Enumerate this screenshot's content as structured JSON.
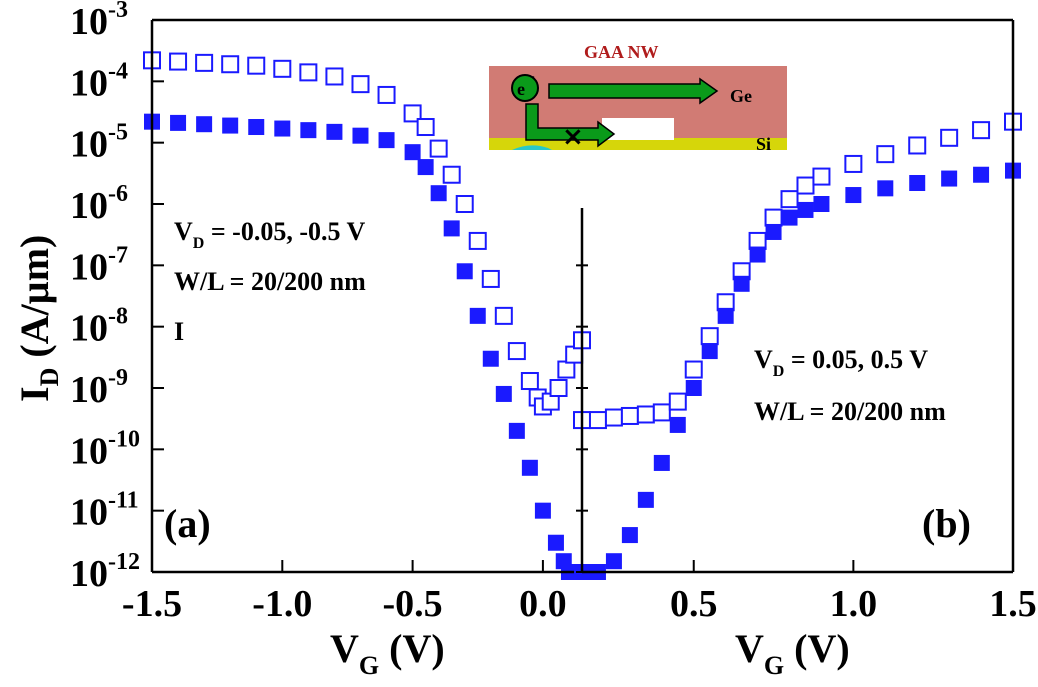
{
  "chart_data": [
    {
      "panel": "(a)",
      "type": "scatter",
      "xlim": [
        -1.5,
        0.15
      ],
      "ylim": [
        1e-12,
        0.001
      ],
      "yscale": "log",
      "x_ticks": [
        "-1.5",
        "-1.0",
        "-0.5",
        "0.0"
      ],
      "y_ticks": [
        {
          "base": "10",
          "exp": "-3",
          "value": 0.001
        },
        {
          "base": "10",
          "exp": "-4",
          "value": 0.0001
        },
        {
          "base": "10",
          "exp": "-5",
          "value": 1e-05
        },
        {
          "base": "10",
          "exp": "-6",
          "value": 1e-06
        },
        {
          "base": "10",
          "exp": "-7",
          "value": 1e-07
        },
        {
          "base": "10",
          "exp": "-8",
          "value": 1e-08
        },
        {
          "base": "10",
          "exp": "-9",
          "value": 1e-09
        },
        {
          "base": "10",
          "exp": "-10",
          "value": 1e-10
        },
        {
          "base": "10",
          "exp": "-11",
          "value": 1e-11
        },
        {
          "base": "10",
          "exp": "-12",
          "value": 1e-12
        }
      ],
      "xlabel": {
        "main": "V",
        "sub": "G",
        "rest": " (V)"
      },
      "ylabel": {
        "main": "I",
        "sub": "D",
        "rest": " (A/µm)"
      },
      "annotations": [
        {
          "main": "V",
          "sub": "D",
          "rest": " = -0.05, -0.5 V"
        },
        {
          "main": "W/L = 20/200 nm",
          "sub": "",
          "rest": ""
        },
        {
          "main": "I",
          "sub": "",
          "rest": ""
        }
      ],
      "series": [
        {
          "marker": "open-square",
          "x": [
            -1.5,
            -1.4,
            -1.3,
            -1.2,
            -1.1,
            -1.0,
            -0.9,
            -0.8,
            -0.7,
            -0.6,
            -0.5,
            -0.45,
            -0.4,
            -0.35,
            -0.3,
            -0.25,
            -0.2,
            -0.15,
            -0.1,
            -0.05,
            -0.02,
            0.0,
            0.03,
            0.06,
            0.09,
            0.12,
            0.15
          ],
          "y": [
            0.00022,
            0.00021,
            0.0002,
            0.00019,
            0.00018,
            0.00016,
            0.00014,
            0.00012,
            9e-05,
            6e-05,
            3e-05,
            1.8e-05,
            8e-06,
            3e-06,
            1e-06,
            2.5e-07,
            6e-08,
            1.5e-08,
            4e-09,
            1.3e-09,
            7e-10,
            5e-10,
            6e-10,
            1e-09,
            2e-09,
            3.5e-09,
            6e-09
          ]
        },
        {
          "marker": "filled-square",
          "x": [
            -1.5,
            -1.4,
            -1.3,
            -1.2,
            -1.1,
            -1.0,
            -0.9,
            -0.8,
            -0.7,
            -0.6,
            -0.5,
            -0.45,
            -0.4,
            -0.35,
            -0.3,
            -0.25,
            -0.2,
            -0.15,
            -0.1,
            -0.05,
            0.0,
            0.05,
            0.08,
            0.1,
            0.12,
            0.14
          ],
          "y": [
            2.2e-05,
            2.1e-05,
            2e-05,
            1.9e-05,
            1.8e-05,
            1.7e-05,
            1.6e-05,
            1.5e-05,
            1.3e-05,
            1.1e-05,
            7e-06,
            4e-06,
            1.5e-06,
            4e-07,
            8e-08,
            1.5e-08,
            3e-09,
            8e-10,
            2e-10,
            5e-11,
            1e-11,
            3e-12,
            1.5e-12,
            1e-12,
            1e-12,
            1e-12
          ]
        }
      ]
    },
    {
      "panel": "(b)",
      "type": "scatter",
      "xlim": [
        0.15,
        1.5
      ],
      "ylim": [
        1e-12,
        0.001
      ],
      "yscale": "log",
      "x_ticks": [
        "0.5",
        "1.0",
        "1.5"
      ],
      "xlabel": {
        "main": "V",
        "sub": "G",
        "rest": " (V)"
      },
      "annotations": [
        {
          "main": "V",
          "sub": "D",
          "rest": " = 0.05, 0.5 V"
        },
        {
          "main": "W/L = 20/200 nm",
          "sub": "",
          "rest": ""
        }
      ],
      "series": [
        {
          "marker": "open-square",
          "x": [
            0.15,
            0.2,
            0.25,
            0.3,
            0.35,
            0.4,
            0.45,
            0.5,
            0.55,
            0.6,
            0.65,
            0.7,
            0.75,
            0.8,
            0.85,
            0.9,
            1.0,
            1.1,
            1.2,
            1.3,
            1.4,
            1.5
          ],
          "y": [
            3e-10,
            3e-10,
            3.3e-10,
            3.5e-10,
            3.7e-10,
            4e-10,
            6e-10,
            2e-09,
            7e-09,
            2.5e-08,
            8e-08,
            2.5e-07,
            6e-07,
            1.2e-06,
            2e-06,
            2.8e-06,
            4.5e-06,
            6.5e-06,
            9e-06,
            1.2e-05,
            1.6e-05,
            2.2e-05
          ]
        },
        {
          "marker": "filled-square",
          "x": [
            0.15,
            0.2,
            0.25,
            0.3,
            0.35,
            0.4,
            0.45,
            0.5,
            0.55,
            0.6,
            0.65,
            0.7,
            0.75,
            0.8,
            0.85,
            0.9,
            1.0,
            1.1,
            1.2,
            1.3,
            1.4,
            1.5
          ],
          "y": [
            1e-12,
            1e-12,
            1.5e-12,
            4e-12,
            1.5e-11,
            6e-11,
            2.5e-10,
            1e-09,
            4e-09,
            1.5e-08,
            5e-08,
            1.5e-07,
            3.5e-07,
            6e-07,
            8e-07,
            1e-06,
            1.4e-06,
            1.8e-06,
            2.2e-06,
            2.6e-06,
            3e-06,
            3.5e-06
          ]
        }
      ]
    }
  ],
  "panel_tags": {
    "a": "(a)",
    "b": "(b)"
  },
  "inset": {
    "title": "GAA NW",
    "electron": "e",
    "electron_sup": "-",
    "ge_label": "Ge",
    "si_label": "Si",
    "block_mark": "×"
  },
  "colors": {
    "marker": "#1a1aff",
    "inset_title": "#b01c1c",
    "ge_layer": "#d17b74",
    "si_layer": "#d6d60a",
    "arrow": "#0a9a1a"
  }
}
